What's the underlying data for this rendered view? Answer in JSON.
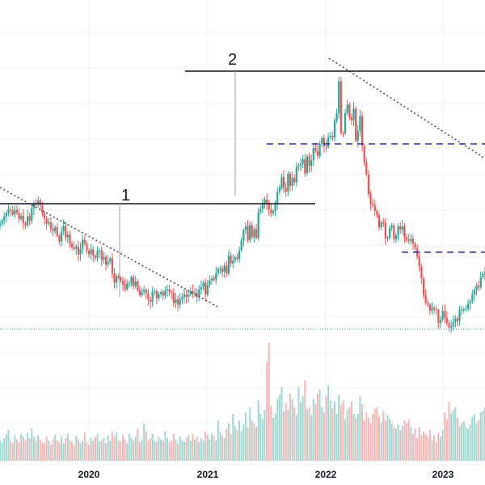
{
  "chart_data": {
    "type": "candlestick",
    "title": "",
    "xlabel": "",
    "ylabel": "",
    "x_ticks": [
      "2020",
      "2021",
      "2022",
      "2023"
    ],
    "grid": true,
    "colors": {
      "up": "#26a69a",
      "down": "#ef5350",
      "up_volume": "#9fd8d2",
      "down_volume": "#f6b6b4",
      "level": "#131722",
      "dashed": "#2929c8",
      "trend": "#444444",
      "baseline": "#26a69a"
    },
    "series": [
      {
        "name": "weekly-close",
        "values": [
          262,
          268,
          276,
          283,
          289,
          287,
          279,
          288,
          283,
          271,
          277,
          263,
          259,
          276,
          267,
          291,
          301,
          299,
          306,
          297,
          282,
          272,
          262,
          265,
          252,
          248,
          255,
          239,
          228,
          247,
          258,
          236,
          241,
          224,
          217,
          214,
          218,
          203,
          214,
          231,
          224,
          210,
          204,
          213,
          201,
          197,
          210,
          211,
          193,
          199,
          184,
          190,
          196,
          168,
          150,
          162,
          159,
          153,
          146,
          137,
          148,
          148,
          160,
          143,
          152,
          135,
          126,
          133,
          136,
          130,
          117,
          113,
          132,
          134,
          120,
          128,
          132,
          125,
          135,
          137,
          132,
          130,
          111,
          118,
          108,
          118,
          122,
          127,
          123,
          127,
          134,
          129,
          130,
          122,
          137,
          142,
          150,
          127,
          145,
          154,
          158,
          155,
          168,
          176,
          177,
          170,
          182,
          167,
          201,
          186,
          192,
          198,
          195,
          211,
          229,
          250,
          257,
          230,
          259,
          236,
          251,
          235,
          284,
          290,
          300,
          308,
          301,
          289,
          282,
          286,
          302,
          323,
          331,
          351,
          330,
          323,
          357,
          334,
          349,
          341,
          370,
          373,
          376,
          385,
          358,
          390,
          372,
          383,
          406,
          400,
          391,
          414,
          425,
          410,
          408,
          427,
          429,
          426,
          458,
          472,
          533,
          435,
          434,
          473,
          489,
          465,
          459,
          481,
          420,
          438,
          467,
          410,
          379,
          355,
          318,
          301,
          298,
          286,
          278,
          255,
          265,
          264,
          234,
          235,
          254,
          259,
          232,
          240,
          257,
          251,
          257,
          236,
          232,
          229,
          233,
          224,
          215,
          199,
          181,
          158,
          126,
          111,
          108,
          96,
          102,
          99,
          97,
          73,
          79,
          96,
          83,
          73,
          64,
          66,
          75,
          81,
          77,
          97,
          99,
          99,
          100,
          110,
          115,
          127,
          136,
          144,
          141,
          160,
          167,
          170
        ]
      },
      {
        "name": "volume",
        "values": [
          30,
          28,
          34,
          40,
          46,
          30,
          26,
          38,
          32,
          28,
          40,
          36,
          30,
          42,
          34,
          48,
          36,
          30,
          38,
          32,
          28,
          26,
          36,
          30,
          24,
          32,
          38,
          30,
          28,
          36,
          26,
          34,
          40,
          30,
          28,
          24,
          38,
          32,
          26,
          30,
          42,
          28,
          24,
          34,
          30,
          36,
          40,
          28,
          30,
          34,
          26,
          38,
          30,
          44,
          36,
          42,
          30,
          28,
          38,
          32,
          26,
          40,
          34,
          30,
          36,
          48,
          28,
          32,
          56,
          44,
          30,
          34,
          40,
          30,
          28,
          36,
          32,
          30,
          44,
          34,
          28,
          30,
          40,
          32,
          26,
          36,
          30,
          28,
          34,
          38,
          30,
          40,
          32,
          36,
          28,
          34,
          30,
          44,
          38,
          32,
          40,
          36,
          30,
          60,
          42,
          38,
          34,
          48,
          56,
          40,
          70,
          52,
          46,
          60,
          44,
          54,
          72,
          50,
          80,
          60,
          56,
          50,
          90,
          70,
          62,
          76,
          148,
          176,
          82,
          64,
          70,
          92,
          98,
          110,
          74,
          86,
          76,
          100,
          92,
          80,
          68,
          110,
          88,
          96,
          120,
          76,
          80,
          68,
          92,
          84,
          100,
          106,
          80,
          72,
          96,
          112,
          90,
          78,
          88,
          70,
          98,
          84,
          90,
          62,
          76,
          80,
          88,
          70,
          64,
          70,
          96,
          84,
          60,
          72,
          64,
          56,
          70,
          78,
          80,
          66,
          58,
          74,
          60,
          68,
          62,
          56,
          50,
          48,
          54,
          46,
          52,
          60,
          56,
          62,
          50,
          40,
          48,
          34,
          50,
          38,
          44,
          40,
          36,
          46,
          30,
          38,
          28,
          42,
          36,
          46,
          72,
          62,
          88,
          70,
          76,
          80,
          64,
          52,
          56,
          58,
          50,
          48,
          54,
          66,
          70,
          56,
          60,
          72,
          74,
          80
        ]
      }
    ],
    "annotations": [
      {
        "label": "1",
        "type": "horizontal-level"
      },
      {
        "label": "2",
        "type": "horizontal-level"
      },
      {
        "type": "dashed-level"
      },
      {
        "type": "dashed-level"
      },
      {
        "type": "dotted-trendline"
      },
      {
        "type": "dotted-trendline"
      },
      {
        "type": "dotted-trendline"
      },
      {
        "type": "dotted-baseline"
      }
    ]
  }
}
